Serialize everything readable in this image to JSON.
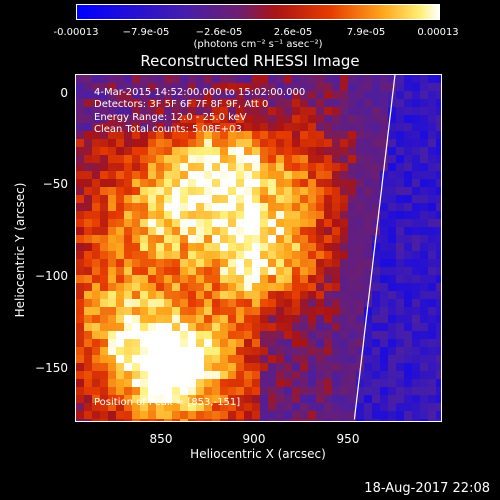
{
  "colorbar": {
    "ticks": [
      "-0.00013",
      "−7.9e-05",
      "−2.6e-05",
      "2.6e-05",
      "7.9e-05",
      "0.00013"
    ],
    "units": "(photons cm⁻² s⁻¹ asec⁻²)"
  },
  "title": "Reconstructed RHESSI Image",
  "annotations": {
    "time": " 4-Mar-2015 14:52:00.000 to 15:02:00.000",
    "detectors": "Detectors: 3F 5F 6F 7F 8F 9F, Att 0",
    "energy": "Energy Range: 12.0 - 25.0 keV",
    "clean": "Clean     Total counts: 5.08E+03",
    "peak": "Position of Peak = [853,-151]"
  },
  "axes": {
    "xlabel": "Heliocentric X (arcsec)",
    "ylabel": "Heliocentric Y (arcsec)",
    "xticks": [
      "850",
      "900",
      "950"
    ],
    "yticks": [
      "0",
      "−50",
      "−100",
      "−150"
    ]
  },
  "datestamp": "18-Aug-2017 22:08",
  "chart_data": {
    "type": "heatmap",
    "title": "Reconstructed RHESSI Image",
    "xlabel": "Heliocentric X (arcsec)",
    "ylabel": "Heliocentric Y (arcsec)",
    "xlim": [
      803,
      994
    ],
    "ylim": [
      -183,
      11
    ],
    "xticks": [
      850,
      900,
      950
    ],
    "yticks": [
      0,
      -50,
      -100,
      -150
    ],
    "colorbar_range": [
      -0.00013,
      0.00013
    ],
    "colorbar_ticks": [
      -0.00013,
      -7.9e-05,
      -2.6e-05,
      2.6e-05,
      7.9e-05,
      0.00013
    ],
    "peak": [
      853,
      -151
    ],
    "hot_spots": [
      {
        "x": 853,
        "y": -151,
        "level": 1.0
      },
      {
        "x": 902,
        "y": -90,
        "level": 0.8
      },
      {
        "x": 875,
        "y": -40,
        "level": 0.55
      },
      {
        "x": 845,
        "y": -70,
        "level": 0.5
      },
      {
        "x": 915,
        "y": -45,
        "level": 0.45
      },
      {
        "x": 820,
        "y": -120,
        "level": 0.4
      }
    ],
    "colors": {
      "low": "#0000ff",
      "mid_low": "#6a2a8a",
      "mid": "#e02000",
      "high": "#ffa020",
      "max": "#ffffff"
    }
  }
}
